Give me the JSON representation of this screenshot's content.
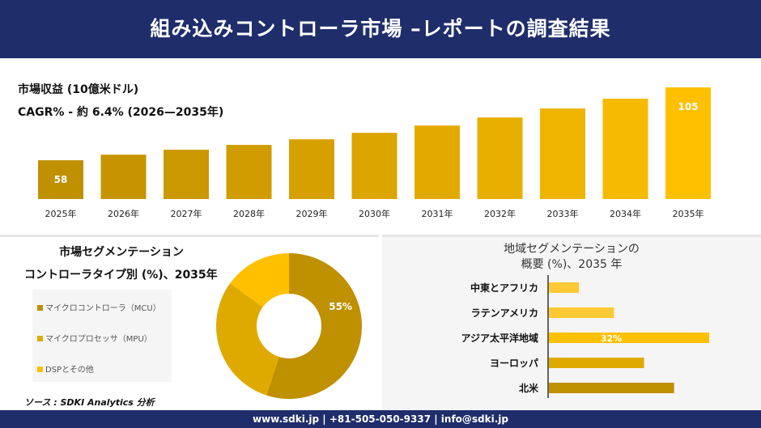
{
  "header": {
    "title": "組み込みコントローラ市場 –レポートの調査結果"
  },
  "top": {
    "line1": "市場収益 (10億米ドル)",
    "line2": "CAGR% - 約 6.4% (2026—2035年)"
  },
  "chart_data": [
    {
      "type": "bar",
      "categories": [
        "2025年",
        "2026年",
        "2027年",
        "2028年",
        "2029年",
        "2030年",
        "2031年",
        "2032年",
        "2033年",
        "2034年",
        "2035年"
      ],
      "values": [
        58,
        61.6,
        64.8,
        67.9,
        71.5,
        75.7,
        80.4,
        85.6,
        91.4,
        97.7,
        105
      ],
      "data_labels": {
        "0": "58",
        "10": "105"
      },
      "ylim": [
        33,
        110
      ],
      "grid": false
    },
    {
      "type": "pie",
      "title": "市場セグメンテーション",
      "subtitle": "コントローラタイプ別 (%)、2035年",
      "categories": [
        "マイクロコントローラ（MCU）",
        "マイクロプロセッサ（MPU）",
        "DSPとその他"
      ],
      "values": [
        55,
        30,
        15
      ],
      "colors": [
        "#bf9000",
        "#dfaa00",
        "#ffc000"
      ],
      "data_labels": {
        "0": "55%"
      },
      "donut": true,
      "legend": "left"
    },
    {
      "type": "bar",
      "orientation": "horizontal",
      "title": "地域セグメンテーションの",
      "subtitle": "概要 (%)、2035 年",
      "categories": [
        "中東とアフリカ",
        "ラテンアメリカ",
        "アジア太平洋地域",
        "ヨーロッパ",
        "北米"
      ],
      "values": [
        6,
        13,
        32,
        19,
        25
      ],
      "colors": [
        "#ffc935",
        "#ffc935",
        "#ffc000",
        "#dfaa00",
        "#bf9000"
      ],
      "data_labels": {
        "2": "32%"
      }
    }
  ],
  "source": "ソース : SDKI Analytics 分析",
  "footer": "www.sdki.jp | +81-505-050-9337 | info@sdki.jp"
}
